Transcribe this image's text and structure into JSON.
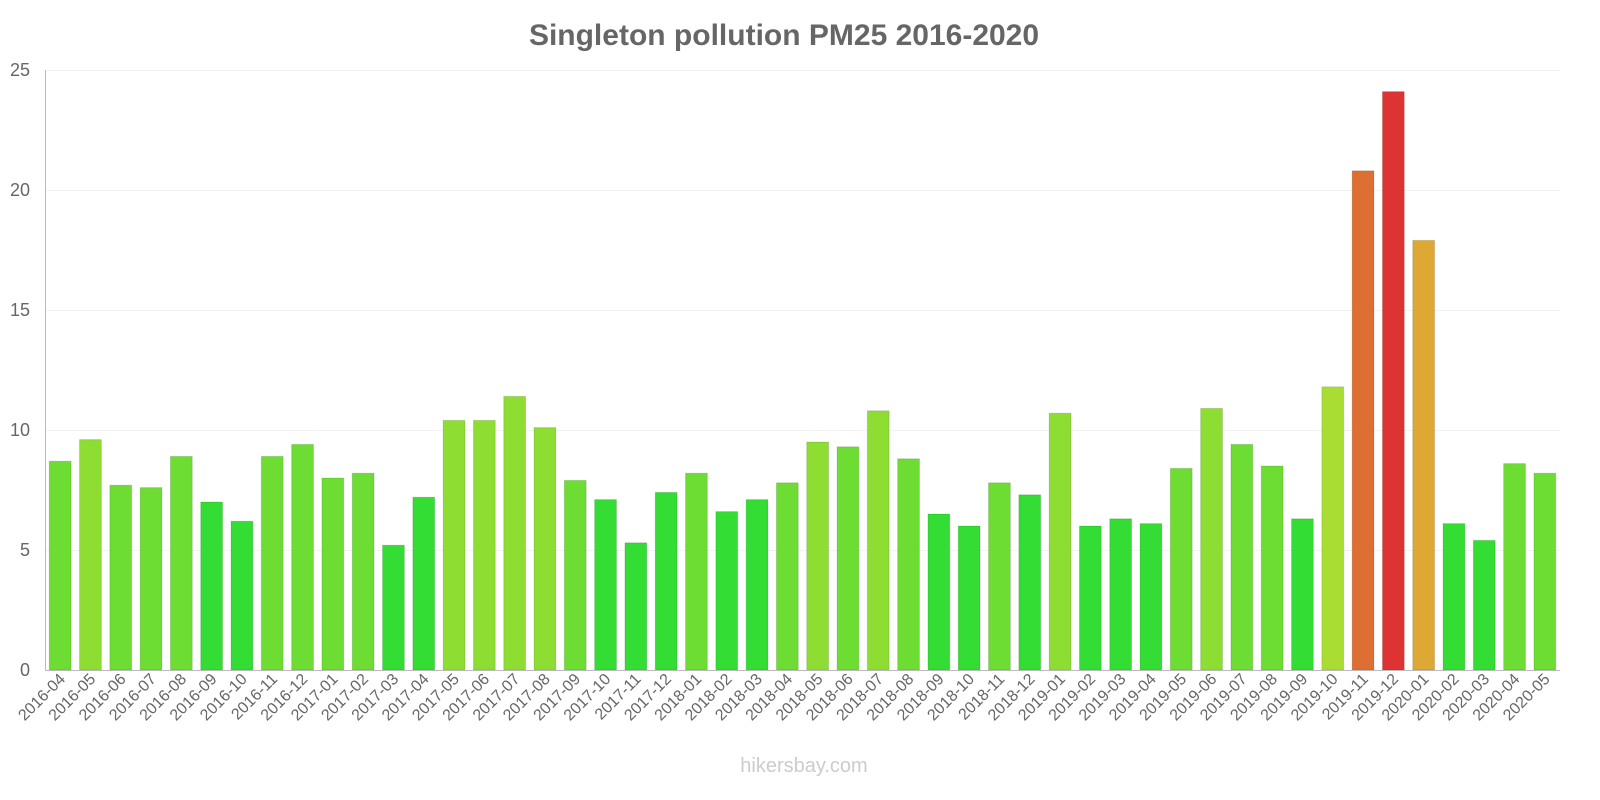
{
  "chart_data": {
    "type": "bar",
    "title": "Singleton pollution PM25 2016-2020",
    "xlabel": "",
    "ylabel": "",
    "ylim": [
      0,
      25
    ],
    "yticks": [
      0,
      5,
      10,
      15,
      20,
      25
    ],
    "grid": true,
    "categories": [
      "2016-04",
      "2016-05",
      "2016-06",
      "2016-07",
      "2016-08",
      "2016-09",
      "2016-10",
      "2016-11",
      "2016-12",
      "2017-01",
      "2017-02",
      "2017-03",
      "2017-04",
      "2017-05",
      "2017-06",
      "2017-07",
      "2017-08",
      "2017-09",
      "2017-10",
      "2017-11",
      "2017-12",
      "2018-01",
      "2018-02",
      "2018-03",
      "2018-04",
      "2018-05",
      "2018-06",
      "2018-07",
      "2018-08",
      "2018-09",
      "2018-10",
      "2018-11",
      "2018-12",
      "2019-01",
      "2019-02",
      "2019-03",
      "2019-04",
      "2019-05",
      "2019-06",
      "2019-07",
      "2019-08",
      "2019-09",
      "2019-10",
      "2019-11",
      "2019-12",
      "2020-01",
      "2020-02",
      "2020-03",
      "2020-04",
      "2020-05"
    ],
    "values": [
      8.7,
      9.6,
      7.7,
      7.6,
      8.9,
      7.0,
      6.2,
      8.9,
      9.4,
      8.0,
      8.2,
      5.2,
      7.2,
      10.4,
      10.4,
      11.4,
      10.1,
      7.9,
      7.1,
      5.3,
      7.4,
      8.2,
      6.6,
      7.1,
      7.8,
      9.5,
      9.3,
      10.8,
      8.8,
      6.5,
      6.0,
      7.8,
      7.3,
      10.7,
      6.0,
      6.3,
      6.1,
      8.4,
      10.9,
      9.4,
      8.5,
      6.3,
      11.8,
      20.8,
      24.1,
      17.9,
      6.1,
      5.4,
      8.6,
      8.2
    ],
    "color_scale": [
      {
        "max": 7.5,
        "color": "#33dd33"
      },
      {
        "max": 9.5,
        "color": "#6ddd33"
      },
      {
        "max": 11.5,
        "color": "#8ddd33"
      },
      {
        "max": 15,
        "color": "#aadd33"
      },
      {
        "max": 19,
        "color": "#dda833"
      },
      {
        "max": 22,
        "color": "#dd6f33"
      },
      {
        "max": 100,
        "color": "#dd3333"
      }
    ]
  },
  "footer": "hikersbay.com"
}
